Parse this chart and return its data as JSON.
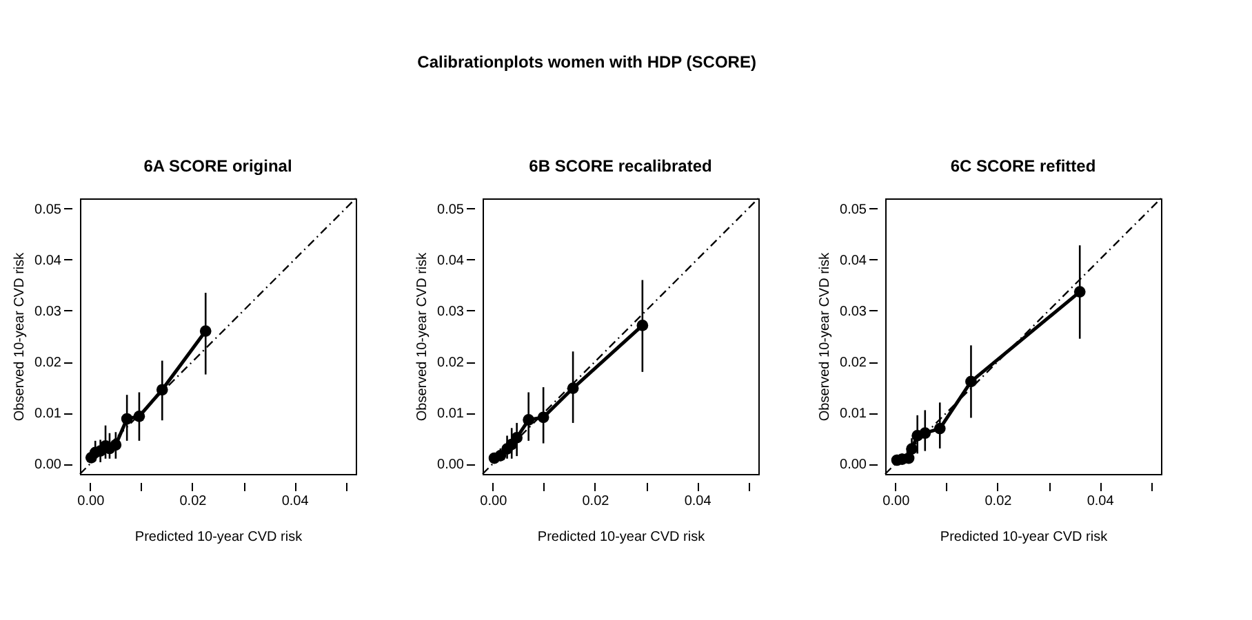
{
  "chart_data": [
    {
      "type": "line",
      "title": "6A SCORE original",
      "annotations": [
        "Calibrationplots women with HDP (SCORE)"
      ],
      "xlabel": "Predicted 10-year CVD risk",
      "ylabel": "Observed 10-year CVD risk",
      "xlim": [
        -0.002,
        0.052
      ],
      "ylim": [
        -0.002,
        0.052
      ],
      "xticks": [
        {
          "value": 0,
          "label": "0.00"
        },
        {
          "value": 0.01,
          "label": null
        },
        {
          "value": 0.02,
          "label": "0.02"
        },
        {
          "value": 0.03,
          "label": null
        },
        {
          "value": 0.04,
          "label": "0.04"
        },
        {
          "value": 0.05,
          "label": null
        }
      ],
      "yticks": [
        {
          "value": 0,
          "label": "0.00"
        },
        {
          "value": 0.01,
          "label": "0.01"
        },
        {
          "value": 0.02,
          "label": "0.02"
        },
        {
          "value": 0.03,
          "label": "0.03"
        },
        {
          "value": 0.04,
          "label": "0.04"
        },
        {
          "value": 0.05,
          "label": "0.05"
        }
      ],
      "grid": false,
      "series": [
        {
          "type": "line",
          "color": "#000000",
          "marker": "circle",
          "line_style": "solid",
          "x": [
            0.0002,
            0.001,
            0.002,
            0.003,
            0.0038,
            0.005,
            0.0072,
            0.0096,
            0.0141,
            0.0226
          ],
          "values": [
            0.0012,
            0.0022,
            0.0025,
            0.0035,
            0.003,
            0.0037,
            0.0088,
            0.0093,
            0.0145,
            0.026
          ],
          "errors": [
            [
              0.0002,
              0.0025
            ],
            [
              0.0005,
              0.0045
            ],
            [
              0.0003,
              0.0047
            ],
            [
              0.001,
              0.0075
            ],
            [
              0.001,
              0.006
            ],
            [
              0.001,
              0.0062
            ],
            [
              0.0045,
              0.0135
            ],
            [
              0.0045,
              0.014
            ],
            [
              0.0085,
              0.0202
            ],
            [
              0.0175,
              0.0335
            ]
          ]
        },
        {
          "type": "line",
          "color": "#000000",
          "marker": "none",
          "line_style": "dashed",
          "x": [
            -0.002,
            0.052
          ],
          "values": [
            -0.002,
            0.052
          ]
        }
      ]
    },
    {
      "type": "line",
      "title": "6B SCORE recalibrated",
      "xlabel": "Predicted 10-year CVD risk",
      "ylabel": "Observed 10-year CVD risk",
      "xlim": [
        -0.002,
        0.052
      ],
      "ylim": [
        -0.002,
        0.052
      ],
      "xticks": [
        {
          "value": 0,
          "label": "0.00"
        },
        {
          "value": 0.01,
          "label": null
        },
        {
          "value": 0.02,
          "label": "0.02"
        },
        {
          "value": 0.03,
          "label": null
        },
        {
          "value": 0.04,
          "label": "0.04"
        },
        {
          "value": 0.05,
          "label": null
        }
      ],
      "yticks": [
        {
          "value": 0,
          "label": "0.00"
        },
        {
          "value": 0.01,
          "label": "0.01"
        },
        {
          "value": 0.02,
          "label": "0.02"
        },
        {
          "value": 0.03,
          "label": "0.03"
        },
        {
          "value": 0.04,
          "label": "0.04"
        },
        {
          "value": 0.05,
          "label": "0.05"
        }
      ],
      "grid": false,
      "series": [
        {
          "type": "line",
          "color": "#000000",
          "marker": "circle",
          "line_style": "solid",
          "x": [
            0.0003,
            0.0015,
            0.0028,
            0.0037,
            0.0047,
            0.007,
            0.0099,
            0.0157,
            0.0293
          ],
          "values": [
            0.0011,
            0.0016,
            0.0029,
            0.0038,
            0.0051,
            0.0086,
            0.0091,
            0.0148,
            0.0271
          ],
          "errors": [
            [
              0.0003,
              0.002
            ],
            [
              0.0005,
              0.003
            ],
            [
              0.001,
              0.0055
            ],
            [
              0.001,
              0.007
            ],
            [
              0.0015,
              0.008
            ],
            [
              0.0045,
              0.014
            ],
            [
              0.004,
              0.015
            ],
            [
              0.008,
              0.022
            ],
            [
              0.018,
              0.036
            ]
          ]
        },
        {
          "type": "line",
          "color": "#000000",
          "marker": "none",
          "line_style": "dashed",
          "x": [
            -0.002,
            0.052
          ],
          "values": [
            -0.002,
            0.052
          ]
        }
      ]
    },
    {
      "type": "line",
      "title": "6C SCORE refitted",
      "xlabel": "Predicted 10-year CVD risk",
      "ylabel": "Observed 10-year CVD risk",
      "xlim": [
        -0.002,
        0.052
      ],
      "ylim": [
        -0.002,
        0.052
      ],
      "xticks": [
        {
          "value": 0,
          "label": "0.00"
        },
        {
          "value": 0.01,
          "label": null
        },
        {
          "value": 0.02,
          "label": "0.02"
        },
        {
          "value": 0.03,
          "label": null
        },
        {
          "value": 0.04,
          "label": "0.04"
        },
        {
          "value": 0.05,
          "label": null
        }
      ],
      "yticks": [
        {
          "value": 0,
          "label": "0.00"
        },
        {
          "value": 0.01,
          "label": "0.01"
        },
        {
          "value": 0.02,
          "label": "0.02"
        },
        {
          "value": 0.03,
          "label": "0.03"
        },
        {
          "value": 0.04,
          "label": "0.04"
        },
        {
          "value": 0.05,
          "label": "0.05"
        }
      ],
      "grid": false,
      "series": [
        {
          "type": "line",
          "color": "#000000",
          "marker": "circle",
          "line_style": "solid",
          "x": [
            0.0003,
            0.0013,
            0.0026,
            0.0032,
            0.0043,
            0.0058,
            0.0087,
            0.0148,
            0.0361
          ],
          "values": [
            0.0007,
            0.0009,
            0.0011,
            0.0029,
            0.0055,
            0.006,
            0.0069,
            0.0161,
            0.0337
          ],
          "errors": [
            [
              0.0003,
              0.0018
            ],
            [
              0.0003,
              0.002
            ],
            [
              0.0005,
              0.002
            ],
            [
              0.001,
              0.005
            ],
            [
              0.002,
              0.0095
            ],
            [
              0.0025,
              0.0105
            ],
            [
              0.003,
              0.012
            ],
            [
              0.009,
              0.0232
            ],
            [
              0.0245,
              0.0428
            ]
          ]
        },
        {
          "type": "line",
          "color": "#000000",
          "marker": "none",
          "line_style": "dashed",
          "x": [
            -0.002,
            0.052
          ],
          "values": [
            -0.002,
            0.052
          ]
        }
      ]
    }
  ]
}
